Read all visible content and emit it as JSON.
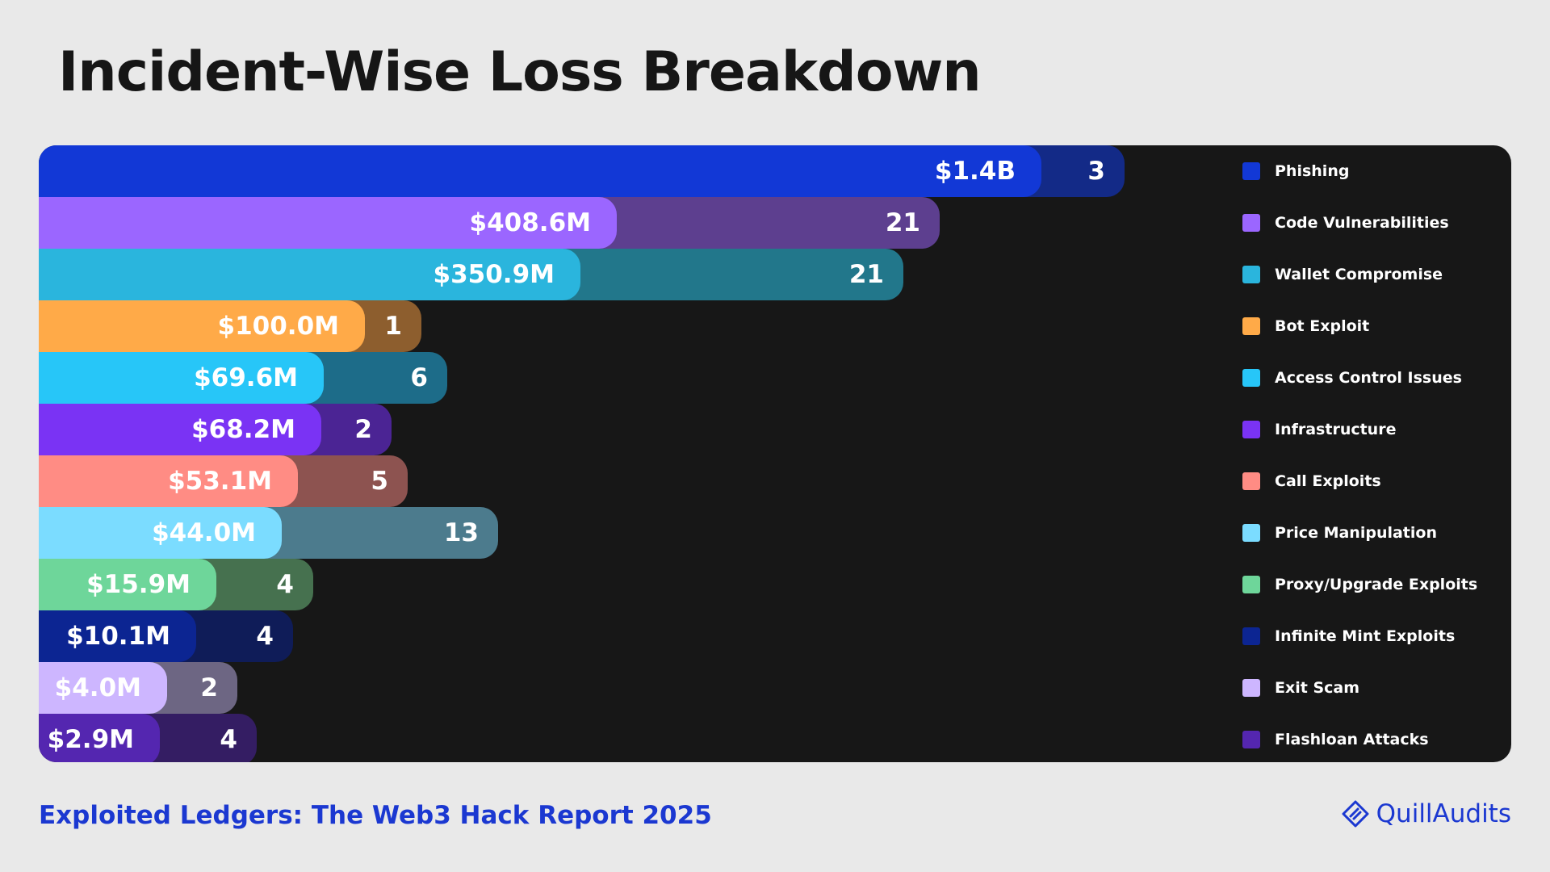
{
  "header": {
    "title": "Incident-Wise Loss Breakdown"
  },
  "chart_data": {
    "type": "bar",
    "orientation": "horizontal",
    "title": "Incident-Wise Loss Breakdown",
    "categories": [
      "Phishing",
      "Code Vulnerabilities",
      "Wallet Compromise",
      "Bot Exploit",
      "Access Control Issues",
      "Infrastructure",
      "Call Exploits",
      "Price Manipulation",
      "Proxy/Upgrade Exploits",
      "Infinite Mint Exploits",
      "Exit Scam",
      "Flashloan Attacks"
    ],
    "series": [
      {
        "name": "Loss (USD)",
        "labels": [
          "$1.4B",
          "$408.6M",
          "$350.9M",
          "$100.0M",
          "$69.6M",
          "$68.2M",
          "$53.1M",
          "$44.0M",
          "$15.9M",
          "$10.1M",
          "$4.0M",
          "$2.9M"
        ]
      },
      {
        "name": "Incidents",
        "values": [
          3,
          21,
          21,
          1,
          6,
          2,
          5,
          13,
          4,
          4,
          2,
          4
        ]
      }
    ],
    "colors": [
      "#1238d6",
      "#9b66ff",
      "#2ab5dd",
      "#ffaa48",
      "#27c6f8",
      "#7a33f4",
      "#ff8c84",
      "#7bdcff",
      "#6ed69a",
      "#0c2592",
      "#cdb6ff",
      "#5426b0"
    ],
    "count_colors": [
      "#132a87",
      "#5d3f8f",
      "#22778b",
      "#8d5e2e",
      "#1d6c89",
      "#4b2494",
      "#8d5350",
      "#4c7b8d",
      "#46714f",
      "#0f1c58",
      "#6d6683",
      "#341d63"
    ]
  },
  "footer": {
    "report_title": "Exploited Ledgers: The Web3 Hack Report 2025",
    "brand": "QuillAudits"
  },
  "icons": {
    "brand_logo": "quillaudits-logo-icon"
  }
}
